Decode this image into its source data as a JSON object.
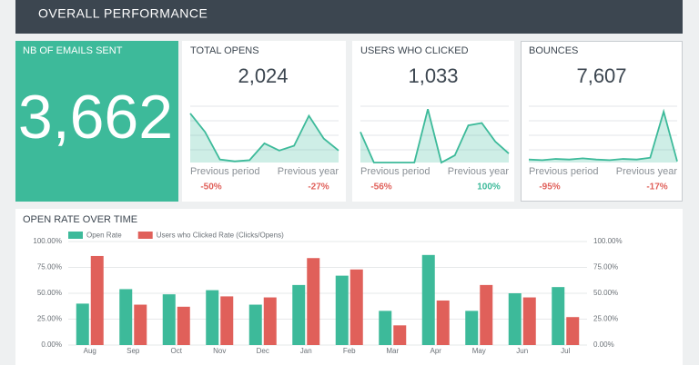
{
  "header": {
    "title": "OVERALL PERFORMANCE"
  },
  "cards": [
    {
      "title": "NB OF EMAILS SENT",
      "value": "3,662"
    },
    {
      "title": "TOTAL OPENS",
      "value": "2,024",
      "comparisons": [
        {
          "label": "Previous period",
          "change": "-50%",
          "color": "#e0605a"
        },
        {
          "label": "Previous year",
          "change": "-27%",
          "color": "#e0605a"
        }
      ]
    },
    {
      "title": "USERS WHO CLICKED",
      "value": "1,033",
      "comparisons": [
        {
          "label": "Previous period",
          "change": "-56%",
          "color": "#e0605a"
        },
        {
          "label": "Previous year",
          "change": "100%",
          "color": "#3dba9a"
        }
      ]
    },
    {
      "title": "BOUNCES",
      "value": "7,607",
      "comparisons": [
        {
          "label": "Previous period",
          "change": "-95%",
          "color": "#e0605a"
        },
        {
          "label": "Previous year",
          "change": "-17%",
          "color": "#e0605a"
        }
      ]
    }
  ],
  "chart_data": [
    {
      "type": "area",
      "color": "#3dba9a",
      "ylim": [
        0,
        100
      ],
      "values": [
        82,
        51,
        5,
        2,
        4,
        32,
        20,
        28,
        78,
        40,
        20
      ]
    },
    {
      "type": "area",
      "color": "#3dba9a",
      "ylim": [
        0,
        100
      ],
      "values": [
        51,
        0,
        0,
        0,
        0,
        89,
        0,
        12,
        62,
        66,
        35,
        15
      ]
    },
    {
      "type": "area",
      "color": "#3dba9a",
      "ylim": [
        0,
        100
      ],
      "values": [
        5,
        4,
        6,
        5,
        7,
        5,
        4,
        6,
        5,
        8,
        85,
        2
      ]
    },
    {
      "type": "bar",
      "title": "OPEN RATE OVER TIME",
      "categories": [
        "Aug",
        "Sep",
        "Oct",
        "Nov",
        "Dec",
        "Jan",
        "Feb",
        "Mar",
        "Apr",
        "May",
        "Jun",
        "Jul"
      ],
      "series": [
        {
          "name": "Open Rate",
          "color": "#3dba9a",
          "values": [
            40,
            54,
            49,
            53,
            39,
            58,
            67,
            33,
            87,
            33,
            50,
            56
          ]
        },
        {
          "name": "Users who Clicked Rate (Clicks/Opens)",
          "color": "#e0605a",
          "values": [
            86,
            39,
            37,
            47,
            46,
            84,
            73,
            19,
            43,
            58,
            46,
            27
          ]
        }
      ],
      "ylim": [
        0,
        100
      ],
      "yticks": [
        {
          "value": 0,
          "label": "0.00%"
        },
        {
          "value": 25,
          "label": "25.00%"
        },
        {
          "value": 50,
          "label": "50.00%"
        },
        {
          "value": 75,
          "label": "75.00%"
        },
        {
          "value": 100,
          "label": "100.00%"
        }
      ],
      "y2lim": [
        0,
        100
      ],
      "y2ticks": [
        {
          "value": 0,
          "label": "0.00%"
        },
        {
          "value": 25,
          "label": "25.00%"
        },
        {
          "value": 50,
          "label": "50.00%"
        },
        {
          "value": 75,
          "label": "75.00%"
        },
        {
          "value": 100,
          "label": "100.00%"
        }
      ],
      "grid": true,
      "legend": "top-left"
    }
  ]
}
